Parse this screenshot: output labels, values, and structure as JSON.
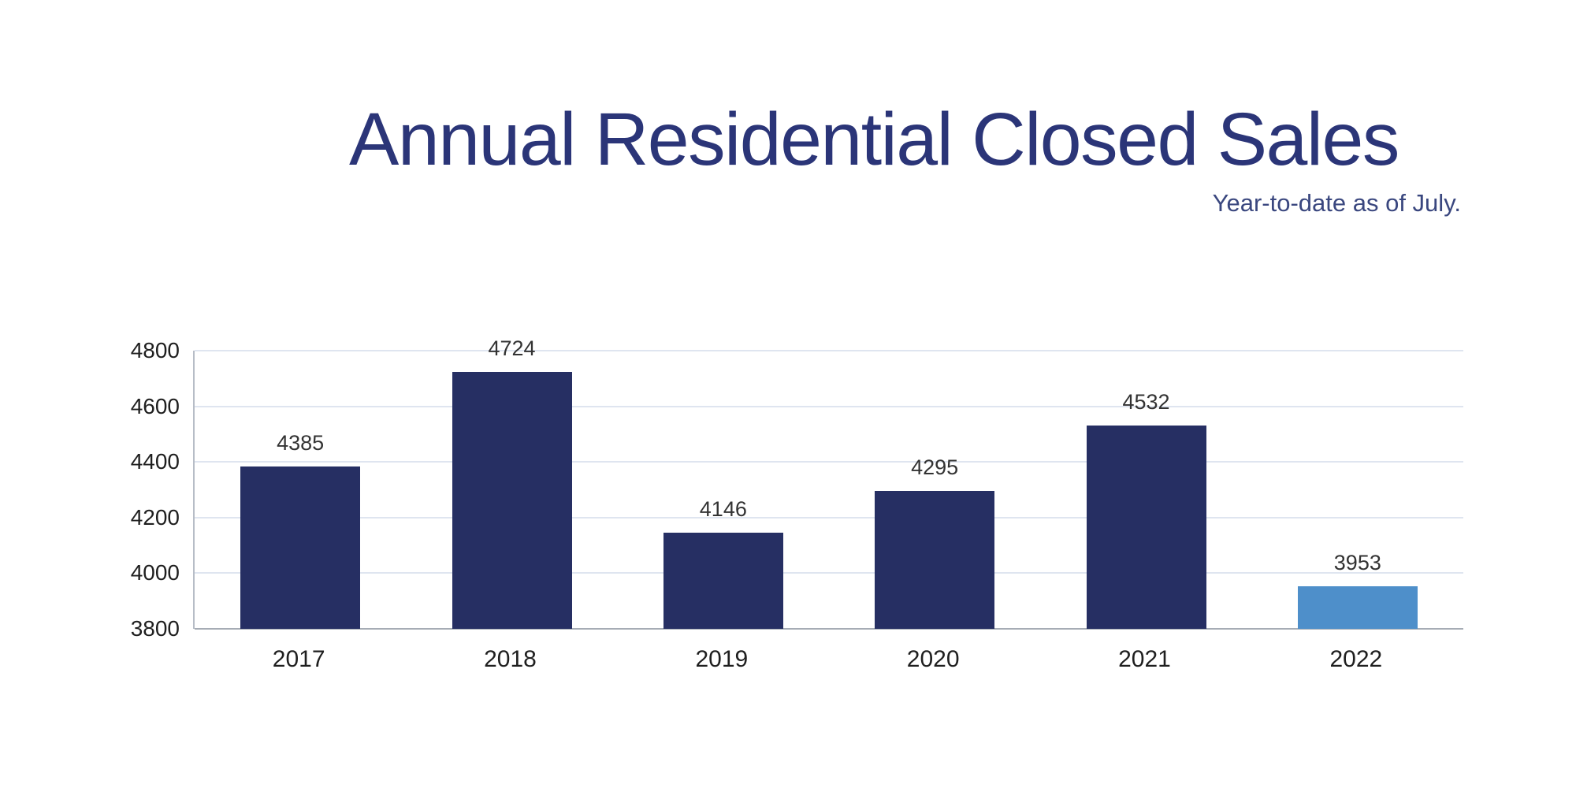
{
  "header": {
    "title": "Annual Residential Closed Sales",
    "subtitle": "Year-to-date as of July."
  },
  "chart_data": {
    "type": "bar",
    "title": "Annual Residential Closed Sales",
    "subtitle": "Year-to-date as of July.",
    "categories": [
      "2017",
      "2018",
      "2019",
      "2020",
      "2021",
      "2022"
    ],
    "values": [
      4385,
      4724,
      4146,
      4295,
      4532,
      3953
    ],
    "data_labels": [
      "4385",
      "4724",
      "4146",
      "4295",
      "4532",
      "3953"
    ],
    "xlabel": "",
    "ylabel": "",
    "ylim": [
      3800,
      4800
    ],
    "ytick_step": 200,
    "ytick_labels": [
      "3800",
      "4000",
      "4200",
      "4400",
      "4600",
      "4800"
    ],
    "grid": true,
    "legend": false,
    "highlight_index": 5
  },
  "colors": {
    "background": "#ffffff",
    "title": "#2b3578",
    "subtitle": "#3a477f",
    "bar": "#262f63",
    "bar_highlight": "#4e8fca",
    "gridline": "#dfe5f0",
    "axis_line": "#a6acb5",
    "plot_border": "#b7bdc7",
    "tick_label": "#1f1f1f",
    "value_label": "#333333"
  }
}
